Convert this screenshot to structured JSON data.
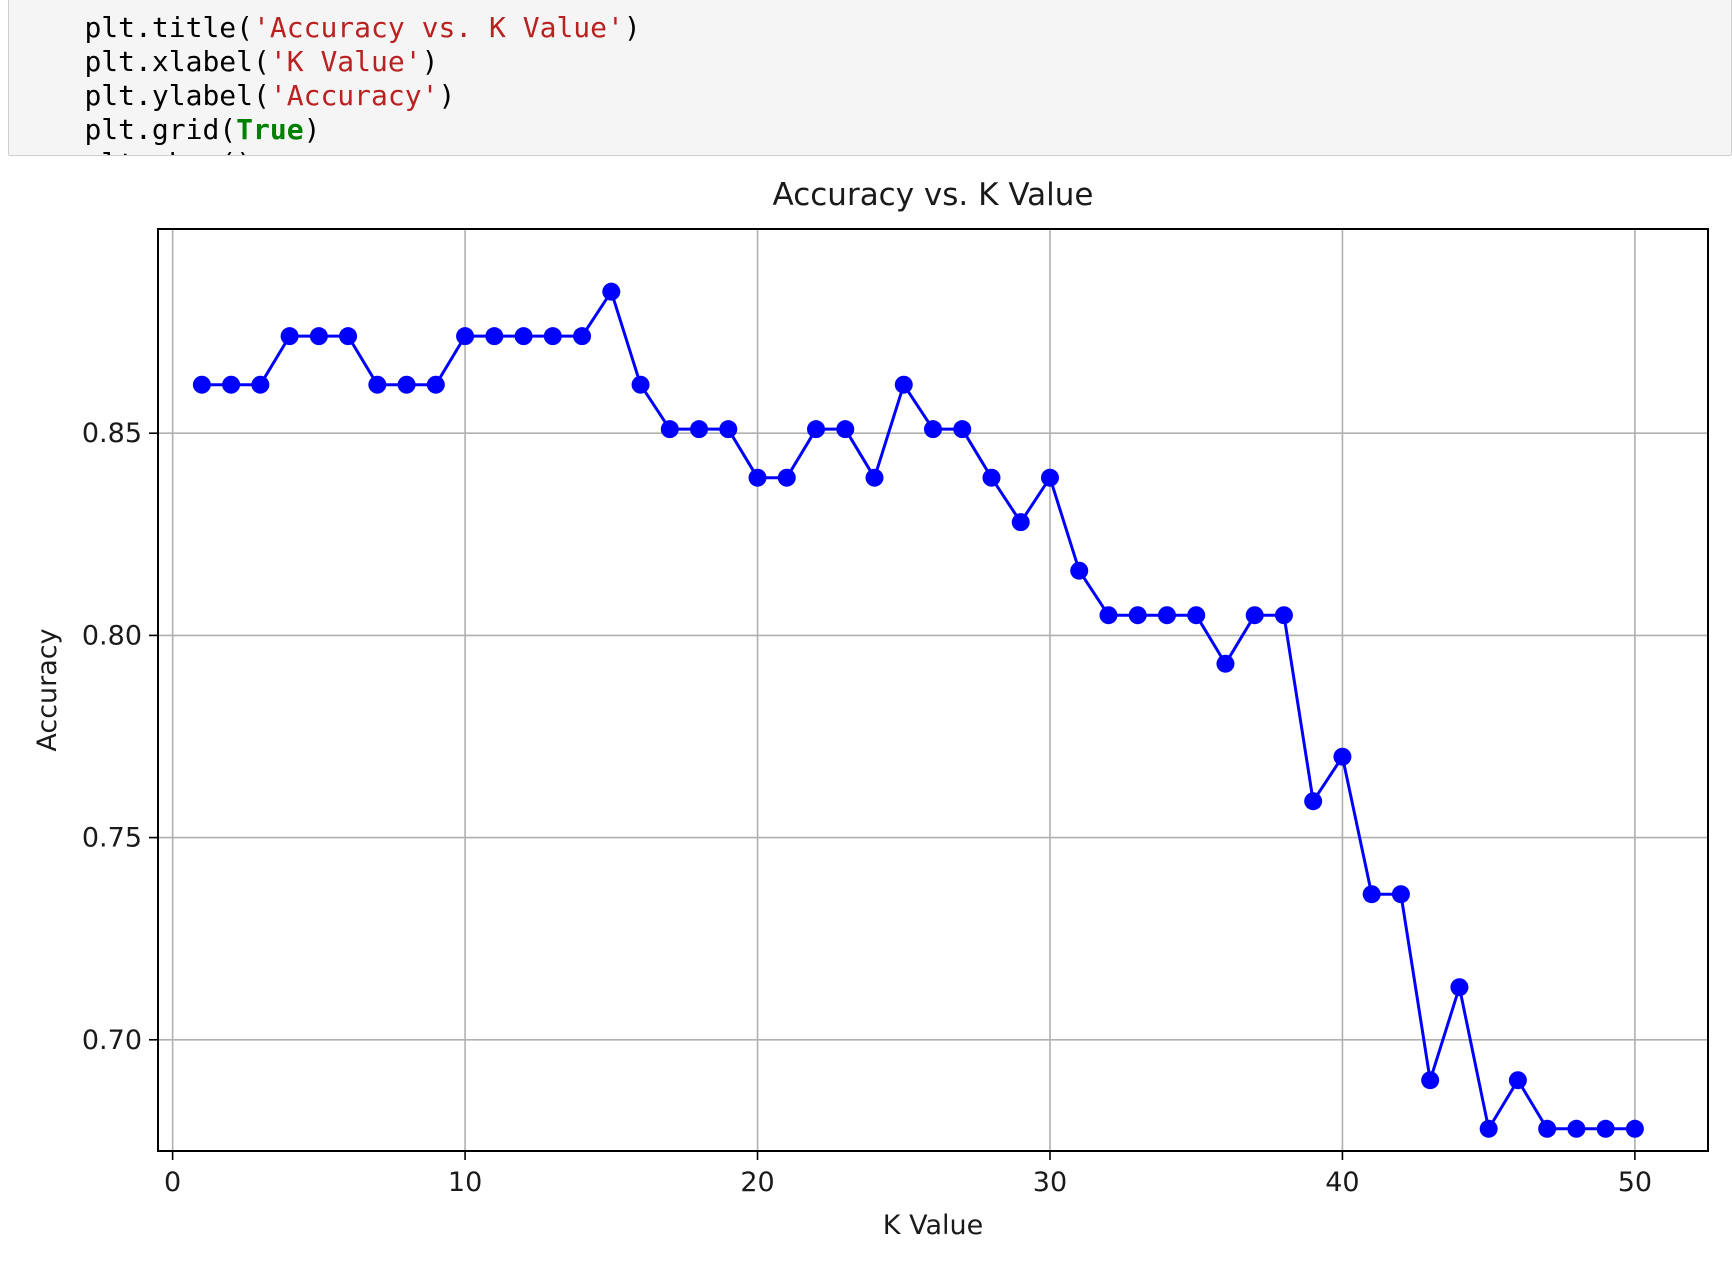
{
  "code": {
    "lines": [
      {
        "pre": "plt.title(",
        "str": "'Accuracy vs. K Value'",
        "post": ")"
      },
      {
        "pre": "plt.xlabel(",
        "str": "'K Value'",
        "post": ")"
      },
      {
        "pre": "plt.ylabel(",
        "str": "'Accuracy'",
        "post": ")"
      },
      {
        "pre": "plt.grid(",
        "kw": "True",
        "post": ")"
      },
      {
        "pre": "plt.show()"
      }
    ]
  },
  "chart_data": {
    "type": "line",
    "title": "Accuracy vs. K Value",
    "xlabel": "K Value",
    "ylabel": "Accuracy",
    "xlim": [
      -0.5,
      52.5
    ],
    "ylim": [
      0.6725,
      0.9005
    ],
    "xticks": [
      0,
      10,
      20,
      30,
      40,
      50
    ],
    "xtick_labels": [
      "0",
      "10",
      "20",
      "30",
      "40",
      "50"
    ],
    "yticks": [
      0.7,
      0.75,
      0.8,
      0.85
    ],
    "ytick_labels": [
      "0.70",
      "0.75",
      "0.80",
      "0.85"
    ],
    "grid": true,
    "line_color": "#0000ff",
    "marker": "circle",
    "series": [
      {
        "x": [
          1,
          2,
          3,
          4,
          5,
          6,
          7,
          8,
          9,
          10,
          11,
          12,
          13,
          14,
          15,
          16,
          17,
          18,
          19,
          20,
          21,
          22,
          23,
          24,
          25,
          26,
          27,
          28,
          29,
          30,
          31,
          32,
          33,
          34,
          35,
          36,
          37,
          38,
          39,
          40,
          41,
          42,
          43,
          44,
          45,
          46,
          47,
          48,
          49,
          50
        ],
        "values": [
          0.862,
          0.862,
          0.862,
          0.874,
          0.874,
          0.874,
          0.862,
          0.862,
          0.862,
          0.874,
          0.874,
          0.874,
          0.874,
          0.874,
          0.885,
          0.862,
          0.851,
          0.851,
          0.851,
          0.839,
          0.839,
          0.851,
          0.851,
          0.839,
          0.862,
          0.851,
          0.851,
          0.839,
          0.828,
          0.839,
          0.816,
          0.805,
          0.805,
          0.805,
          0.805,
          0.793,
          0.805,
          0.805,
          0.759,
          0.77,
          0.736,
          0.736,
          0.69,
          0.713,
          0.678,
          0.69,
          0.678,
          0.678,
          0.678,
          0.678
        ]
      }
    ]
  }
}
